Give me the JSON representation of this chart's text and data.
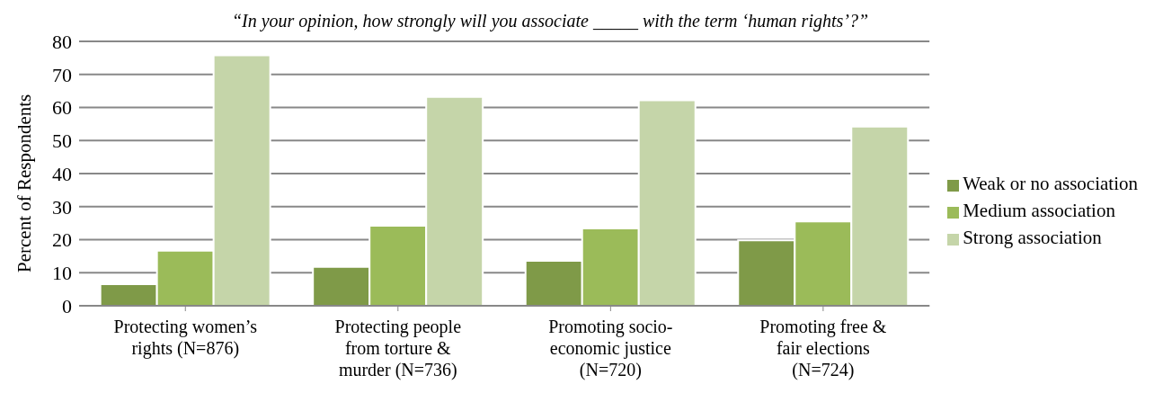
{
  "chart_data": {
    "type": "bar",
    "title": "“In your opinion, how strongly will you associate _____ with the term ‘human rights’?”",
    "ylabel": "Percent of Respondents",
    "categories": [
      "Protecting women’s rights (N=876)",
      "Protecting people from torture & murder (N=736)",
      "Promoting socio-economic justice (N=720)",
      "Promoting free & fair elections (N=724)"
    ],
    "series": [
      {
        "name": "Weak or no association",
        "color": "#7f9a48",
        "values": [
          6.5,
          11.8,
          13.6,
          19.8
        ]
      },
      {
        "name": "Medium association",
        "color": "#9bbb59",
        "values": [
          16.7,
          24.2,
          23.4,
          25.5
        ]
      },
      {
        "name": "Strong association",
        "color": "#c5d5a9",
        "values": [
          75.8,
          63.2,
          62.2,
          54.2
        ]
      }
    ],
    "ylim": [
      0,
      80
    ],
    "yticks": [
      0,
      10,
      20,
      30,
      40,
      50,
      60,
      70,
      80
    ],
    "grid": "y",
    "legend": "right"
  }
}
